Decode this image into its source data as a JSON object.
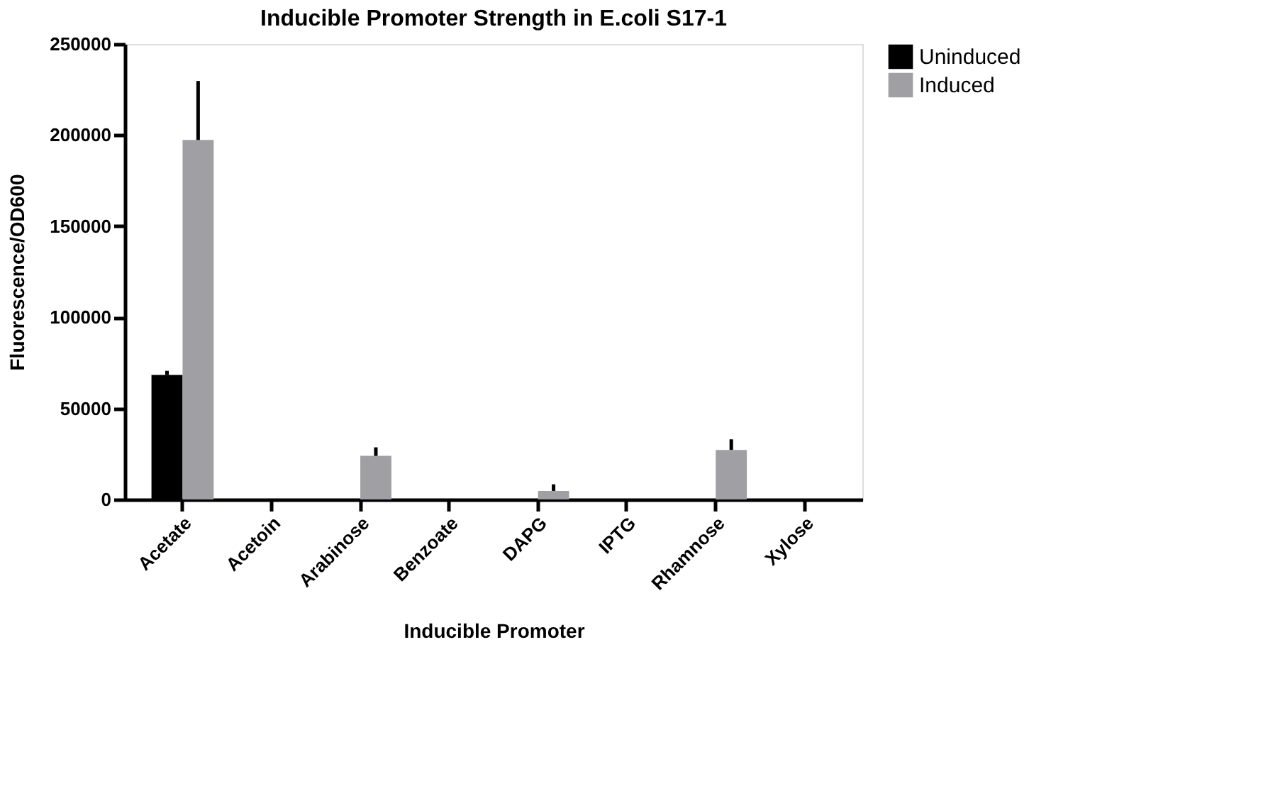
{
  "chart_data": {
    "type": "bar",
    "title": "Inducible Promoter Strength in E.coli S17-1",
    "xlabel": "Inducible Promoter",
    "ylabel": "Fluorescence/OD600",
    "categories": [
      "Acetate",
      "Acetoin",
      "Arabinose",
      "Benzoate",
      "DAPG",
      "IPTG",
      "Rhamnose",
      "Xylose"
    ],
    "series": [
      {
        "name": "Uninduced",
        "color": "#000000",
        "values": [
          68300,
          0,
          0,
          null,
          0,
          0,
          0,
          null
        ],
        "errors": [
          [
            68300,
            70600
          ],
          null,
          null,
          null,
          null,
          null,
          null,
          null
        ]
      },
      {
        "name": "Induced",
        "color": "#a09fa4",
        "values": [
          197300,
          0,
          23900,
          0,
          4700,
          0,
          27200,
          null
        ],
        "errors": [
          [
            197300,
            229700
          ],
          null,
          [
            23900,
            28600
          ],
          null,
          [
            4700,
            8300
          ],
          null,
          [
            27200,
            33000
          ],
          null
        ]
      }
    ],
    "ylim": [
      0,
      250000
    ],
    "yticks": [
      0,
      50000,
      100000,
      150000,
      200000,
      250000
    ],
    "grid": false,
    "legend": "top right"
  }
}
